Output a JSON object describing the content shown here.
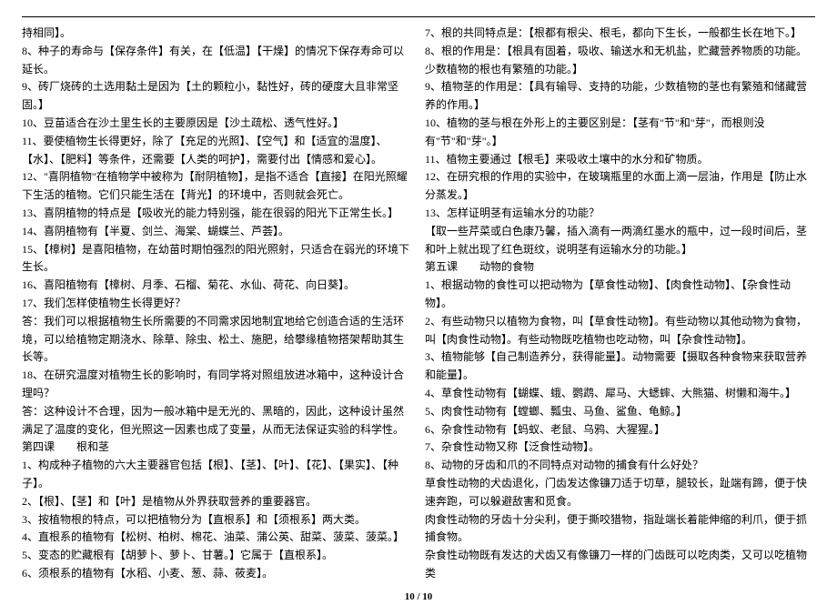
{
  "rule_color": "#000000",
  "left": [
    "持相同】。",
    "8、种子的寿命与【保存条件】有关，在【低温】【干燥】的情况下保存寿命可以延长。",
    "9、砖厂烧砖的土选用黏土是因为【土的颗粒小，黏性好，砖的硬度大且非常坚固。】",
    "10、豆苗适合在沙土里生长的主要原因是【沙土疏松、透气性好。】",
    "11、要使植物生长得更好，除了【充足的光照】、【空气】和【适宜的温度】、【水】、【肥料】等条件，还需要【人类的呵护】，需要付出【情感和爱心】。",
    "12、\"喜阴植物\"在植物学中被称为【耐阴植物】，是指不适合【直接】在阳光照耀下生活的植物。它们只能生活在【背光】的环境中，否则就会死亡。",
    "13、喜阴植物的特点是【吸收光的能力特别强，能在很弱的阳光下正常生长。】",
    "14、喜阴植物有【半夏、剑兰、海棠、蝴蝶兰、芦荟】。",
    "15、【樟树】是喜阳植物，在幼苗时期怕强烈的阳光照射，只适合在弱光的环境下生长。",
    "16、喜阳植物有【樟树、月季、石榴、菊花、水仙、荷花、向日葵】。",
    "17、我们怎样使植物生长得更好？",
    "答：我们可以根据植物生长所需要的不同需求因地制宜地给它创造合适的生活环境，可以给植物定期浇水、除草、除虫、松土、施肥，给攀缘植物搭架帮助其生长等。",
    "18、在研究温度对植物生长的影响时，有同学将对照组放进冰箱中，这种设计合理吗？",
    "答：这种设计不合理，因为一般冰箱中是无光的、黑暗的，因此，这种设计虽然满足了温度的变化，但光照这一因素也成了变量，从而无法保证实验的科学性。",
    "第四课　　根和茎",
    "1、构成种子植物的六大主要器官包括【根】、【茎】、【叶】、【花】、【果实】、【种子】。",
    "2、【根】、【茎】和【叶】是植物从外界获取营养的重要器官。",
    "3、按植物根的特点，可以把植物分为【直根系】和【须根系】两大类。",
    "4、直根系的植物有【松树、柏树、棉花、油菜、蒲公英、甜菜、菠菜、菠菜。】",
    "5、变态的贮藏根有【胡萝卜、萝卜、甘薯。】它属于【直根系】。",
    "6、须根系的植物有【水稻、小麦、葱、蒜、莜麦】。"
  ],
  "right": [
    "7、根的共同特点是：【根都有根尖、根毛，都向下生长，一般都生长在地下。】",
    "8、根的作用是：【根具有固着，吸收、输送水和无机盐，贮藏营养物质的功能。少数植物的根也有繁殖的功能。】",
    "9、植物茎的作用是：【具有输导、支持的功能，少数植物的茎也有繁殖和储藏营养的作用。】",
    "10、植物的茎与根在外形上的主要区别是：【茎有\"节\"和\"芽\"，而根则没有\"节\"和\"芽\"。】",
    "11、植物主要通过【根毛】来吸收土壤中的水分和矿物质。",
    "12、在研究根的作用的实验中，在玻璃瓶里的水面上滴一层油，作用是【防止水分蒸发。】",
    "13、怎样证明茎有运输水分的功能？",
    "【取一些芹菜或白色康乃馨，插入滴有一两滴红墨水的瓶中，过一段时间后，茎和叶上就出现了红色斑纹，说明茎有运输水分的功能。】",
    "第五课　　动物的食物",
    "1、根据动物的食性可以把动物为【草食性动物】、【肉食性动物】、【杂食性动物】。",
    "2、有些动物只以植物为食物，叫【草食性动物】。有些动物以其他动物为食物，叫【肉食性动物】。有些动物既吃植物也吃动物，叫【杂食性动物】。",
    "3、植物能够【自己制造养分，获得能量】。动物需要【摄取各种食物来获取营养和能量】。",
    "4、草食性动物有【蝴蝶、蛾、鹦鹉、犀马、大蟋蟀、大熊猫、树懒和海牛。】",
    "5、肉食性动物有【螳螂、瓢虫、马鱼、鲨鱼、龟鲸。】",
    "6、杂食性动物有【蚂蚁、老鼠、乌鸦、大猩猩。】",
    "7、杂食性动物又称【泛食性动物】。",
    "8、动物的牙齿和爪的不同特点对动物的捕食有什么好处？",
    "草食性动物的犬齿退化，门齿发达像镰刀适于切草，腿较长，趾端有蹄，便于快速奔跑，可以躲避敌害和觅食。",
    "肉食性动物的牙齿十分尖利，便于撕咬猎物，指趾端长着能伸缩的利爪，便于抓捕食物。",
    "杂食性动物既有发达的犬齿又有像镰刀一样的门齿既可以吃肉类，又可以吃植物类"
  ],
  "page_number": "10 / 10"
}
